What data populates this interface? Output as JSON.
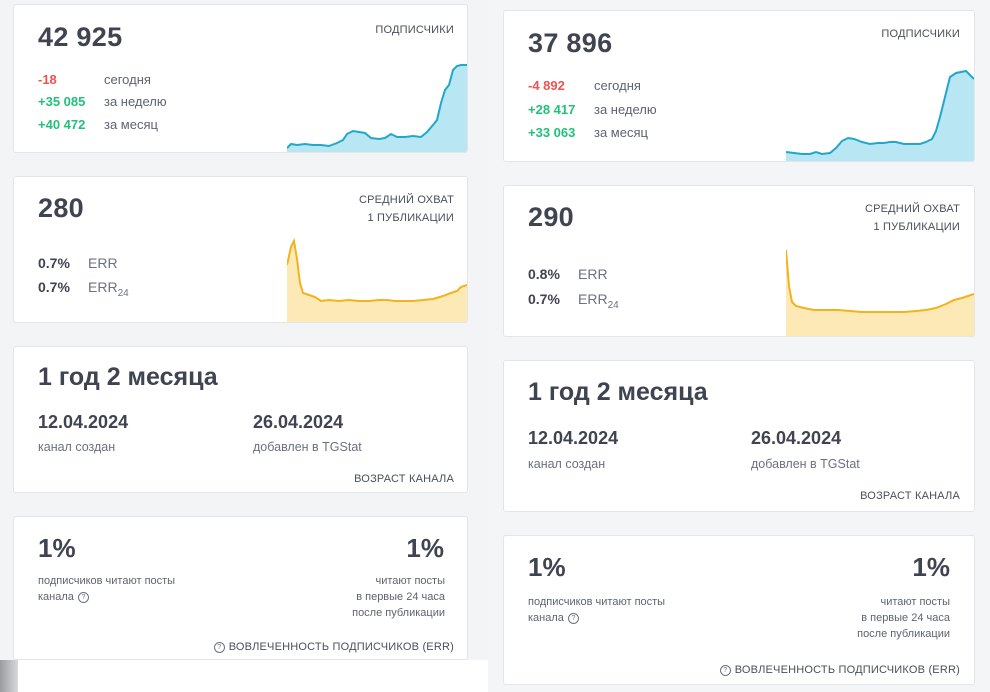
{
  "left": {
    "subscribers": {
      "count": "42 925",
      "caption": "ПОДПИСЧИКИ",
      "rows": [
        {
          "value": "-18",
          "label": "сегодня",
          "tone": "neg"
        },
        {
          "value": "+35 085",
          "label": "за неделю",
          "tone": "pos"
        },
        {
          "value": "+40 472",
          "label": "за месяц",
          "tone": "pos"
        }
      ]
    },
    "reach": {
      "count": "280",
      "caption_line1": "СРЕДНИЙ ОХВАТ",
      "caption_line2": "1 ПУБЛИКАЦИИ",
      "err": {
        "value": "0.7%",
        "label": "ERR"
      },
      "err24": {
        "value": "0.7%",
        "label": "ERR",
        "sub": "24"
      }
    },
    "age": {
      "title": "1 год 2 месяца",
      "created_date": "12.04.2024",
      "created_label": "канал создан",
      "added_date": "26.04.2024",
      "added_label": "добавлен в TGStat",
      "caption": "ВОЗРАСТ КАНАЛА"
    },
    "engagement": {
      "left_pct": "1%",
      "left_line1": "подписчиков читают посты",
      "left_line2": "канала",
      "right_pct": "1%",
      "right_line1": "читают посты",
      "right_line2": "в первые 24 часа",
      "right_line3": "после публикации",
      "caption": "ВОВЛЕЧЕННОСТЬ ПОДПИСЧИКОВ (ERR)"
    }
  },
  "right": {
    "subscribers": {
      "count": "37 896",
      "caption": "ПОДПИСЧИКИ",
      "rows": [
        {
          "value": "-4 892",
          "label": "сегодня",
          "tone": "neg"
        },
        {
          "value": "+28 417",
          "label": "за неделю",
          "tone": "pos"
        },
        {
          "value": "+33 063",
          "label": "за месяц",
          "tone": "pos"
        }
      ]
    },
    "reach": {
      "count": "290",
      "caption_line1": "СРЕДНИЙ ОХВАТ",
      "caption_line2": "1 ПУБЛИКАЦИИ",
      "err": {
        "value": "0.8%",
        "label": "ERR"
      },
      "err24": {
        "value": "0.7%",
        "label": "ERR",
        "sub": "24"
      }
    },
    "age": {
      "title": "1 год 2 месяца",
      "created_date": "12.04.2024",
      "created_label": "канал создан",
      "added_date": "26.04.2024",
      "added_label": "добавлен в TGStat",
      "caption": "ВОЗРАСТ КАНАЛА"
    },
    "engagement": {
      "left_pct": "1%",
      "left_line1": "подписчиков читают посты",
      "left_line2": "канала",
      "right_pct": "1%",
      "right_line1": "читают посты",
      "right_line2": "в первые 24 часа",
      "right_line3": "после публикации",
      "caption": "ВОВЛЕЧЕННОСТЬ ПОДПИСЧИКОВ (ERR)"
    }
  },
  "colors": {
    "subscribers_line": "#21a8c9",
    "subscribers_fill": "#b8e6f3",
    "reach_line": "#f2b31c",
    "reach_fill": "#fde9b6",
    "negative": "#ef5350",
    "positive": "#21c17b"
  }
}
